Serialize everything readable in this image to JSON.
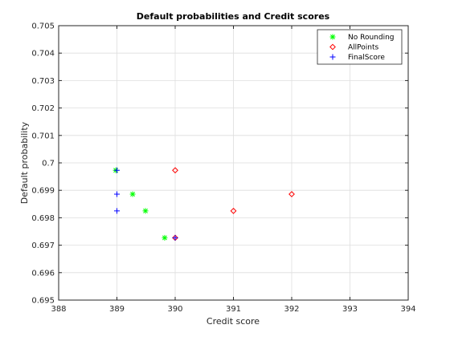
{
  "chart_data": {
    "type": "scatter",
    "title": "Default probabilities and Credit scores",
    "xlabel": "Credit score",
    "ylabel": "Default probability",
    "xlim": [
      388,
      394
    ],
    "ylim": [
      0.695,
      0.705
    ],
    "xticks": [
      388,
      389,
      390,
      391,
      392,
      393,
      394
    ],
    "xtick_labels": [
      "388",
      "389",
      "390",
      "391",
      "392",
      "393",
      "394"
    ],
    "yticks": [
      0.695,
      0.696,
      0.697,
      0.698,
      0.699,
      0.7,
      0.701,
      0.702,
      0.703,
      0.704,
      0.705
    ],
    "ytick_labels": [
      "0.695",
      "0.696",
      "0.697",
      "0.698",
      "0.699",
      "0.7",
      "0.701",
      "0.702",
      "0.703",
      "0.704",
      "0.705"
    ],
    "grid": true,
    "legend_position": "top-right",
    "series": [
      {
        "name": "No Rounding",
        "marker": "asterisk",
        "color": "#00ff00",
        "points": [
          [
            388.98,
            0.69973
          ],
          [
            389.27,
            0.69886
          ],
          [
            389.49,
            0.69825
          ],
          [
            389.82,
            0.69727
          ]
        ]
      },
      {
        "name": "AllPoints",
        "marker": "diamond",
        "color": "#ff0000",
        "points": [
          [
            390,
            0.69973
          ],
          [
            390,
            0.69727
          ],
          [
            391,
            0.69825
          ],
          [
            392,
            0.69886
          ]
        ]
      },
      {
        "name": "FinalScore",
        "marker": "plus",
        "color": "#0000ff",
        "points": [
          [
            389,
            0.69973
          ],
          [
            389,
            0.69886
          ],
          [
            389,
            0.69825
          ],
          [
            390,
            0.69727
          ]
        ]
      }
    ]
  }
}
